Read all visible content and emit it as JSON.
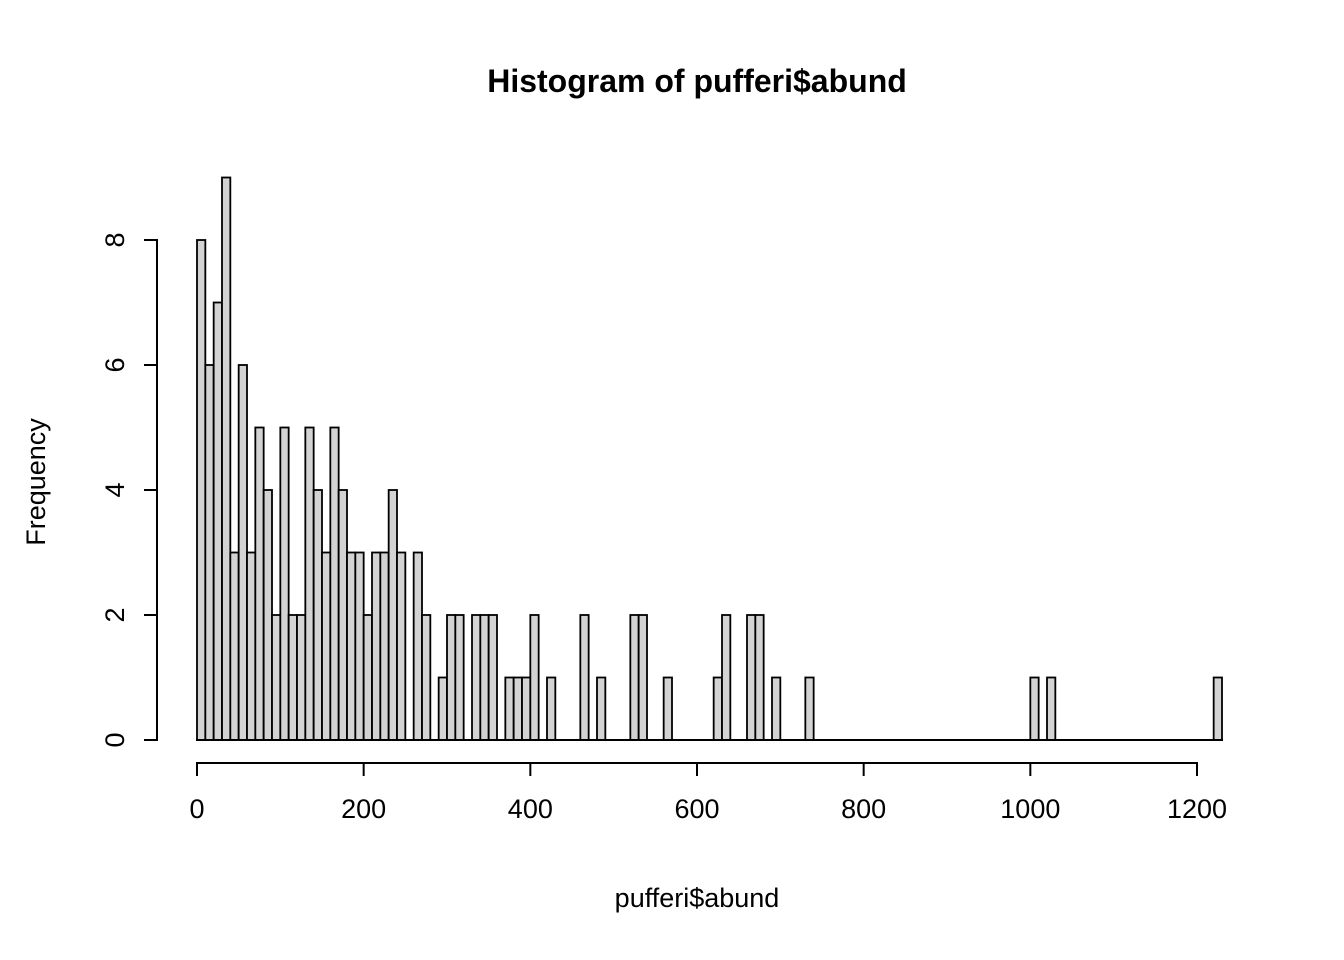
{
  "title": "Histogram of pufferi$abund",
  "x_axis": {
    "label": "pufferi$abund",
    "ticks": [
      0,
      200,
      400,
      600,
      800,
      1000,
      1200
    ]
  },
  "y_axis": {
    "label": "Frequency",
    "ticks": [
      0,
      2,
      4,
      6,
      8
    ]
  },
  "colors": {
    "background": "#ffffff",
    "bar_fill": "#d3d3d3",
    "bar_stroke": "#000000",
    "axis_color": "#000000",
    "text_color": "#000000"
  },
  "chart_data": {
    "type": "bar",
    "subtype": "histogram",
    "title": "Histogram of pufferi$abund",
    "xlabel": "pufferi$abund",
    "ylabel": "Frequency",
    "xlim": [
      0,
      1230
    ],
    "ylim": [
      0,
      9
    ],
    "x_tick_values": [
      0,
      200,
      400,
      600,
      800,
      1000,
      1200
    ],
    "y_tick_values": [
      0,
      2,
      4,
      6,
      8
    ],
    "grid": false,
    "legend": false,
    "bin_width": 10,
    "first_bin_start": 0,
    "counts": [
      8,
      6,
      7,
      9,
      3,
      6,
      3,
      5,
      4,
      2,
      5,
      2,
      2,
      5,
      4,
      3,
      5,
      4,
      3,
      3,
      2,
      3,
      3,
      4,
      3,
      0,
      3,
      2,
      0,
      1,
      2,
      2,
      0,
      2,
      2,
      2,
      0,
      1,
      1,
      1,
      2,
      0,
      1,
      0,
      0,
      0,
      2,
      0,
      1,
      0,
      0,
      0,
      2,
      2,
      0,
      0,
      1,
      0,
      0,
      0,
      0,
      0,
      1,
      2,
      0,
      0,
      2,
      2,
      0,
      1,
      0,
      0,
      0,
      1,
      0,
      0,
      0,
      0,
      0,
      0,
      0,
      0,
      0,
      0,
      0,
      0,
      0,
      0,
      0,
      0,
      0,
      0,
      0,
      0,
      0,
      0,
      0,
      0,
      0,
      0,
      1,
      0,
      1,
      0,
      0,
      0,
      0,
      0,
      0,
      0,
      0,
      0,
      0,
      0,
      0,
      0,
      0,
      0,
      0,
      0,
      0,
      0,
      1
    ]
  }
}
